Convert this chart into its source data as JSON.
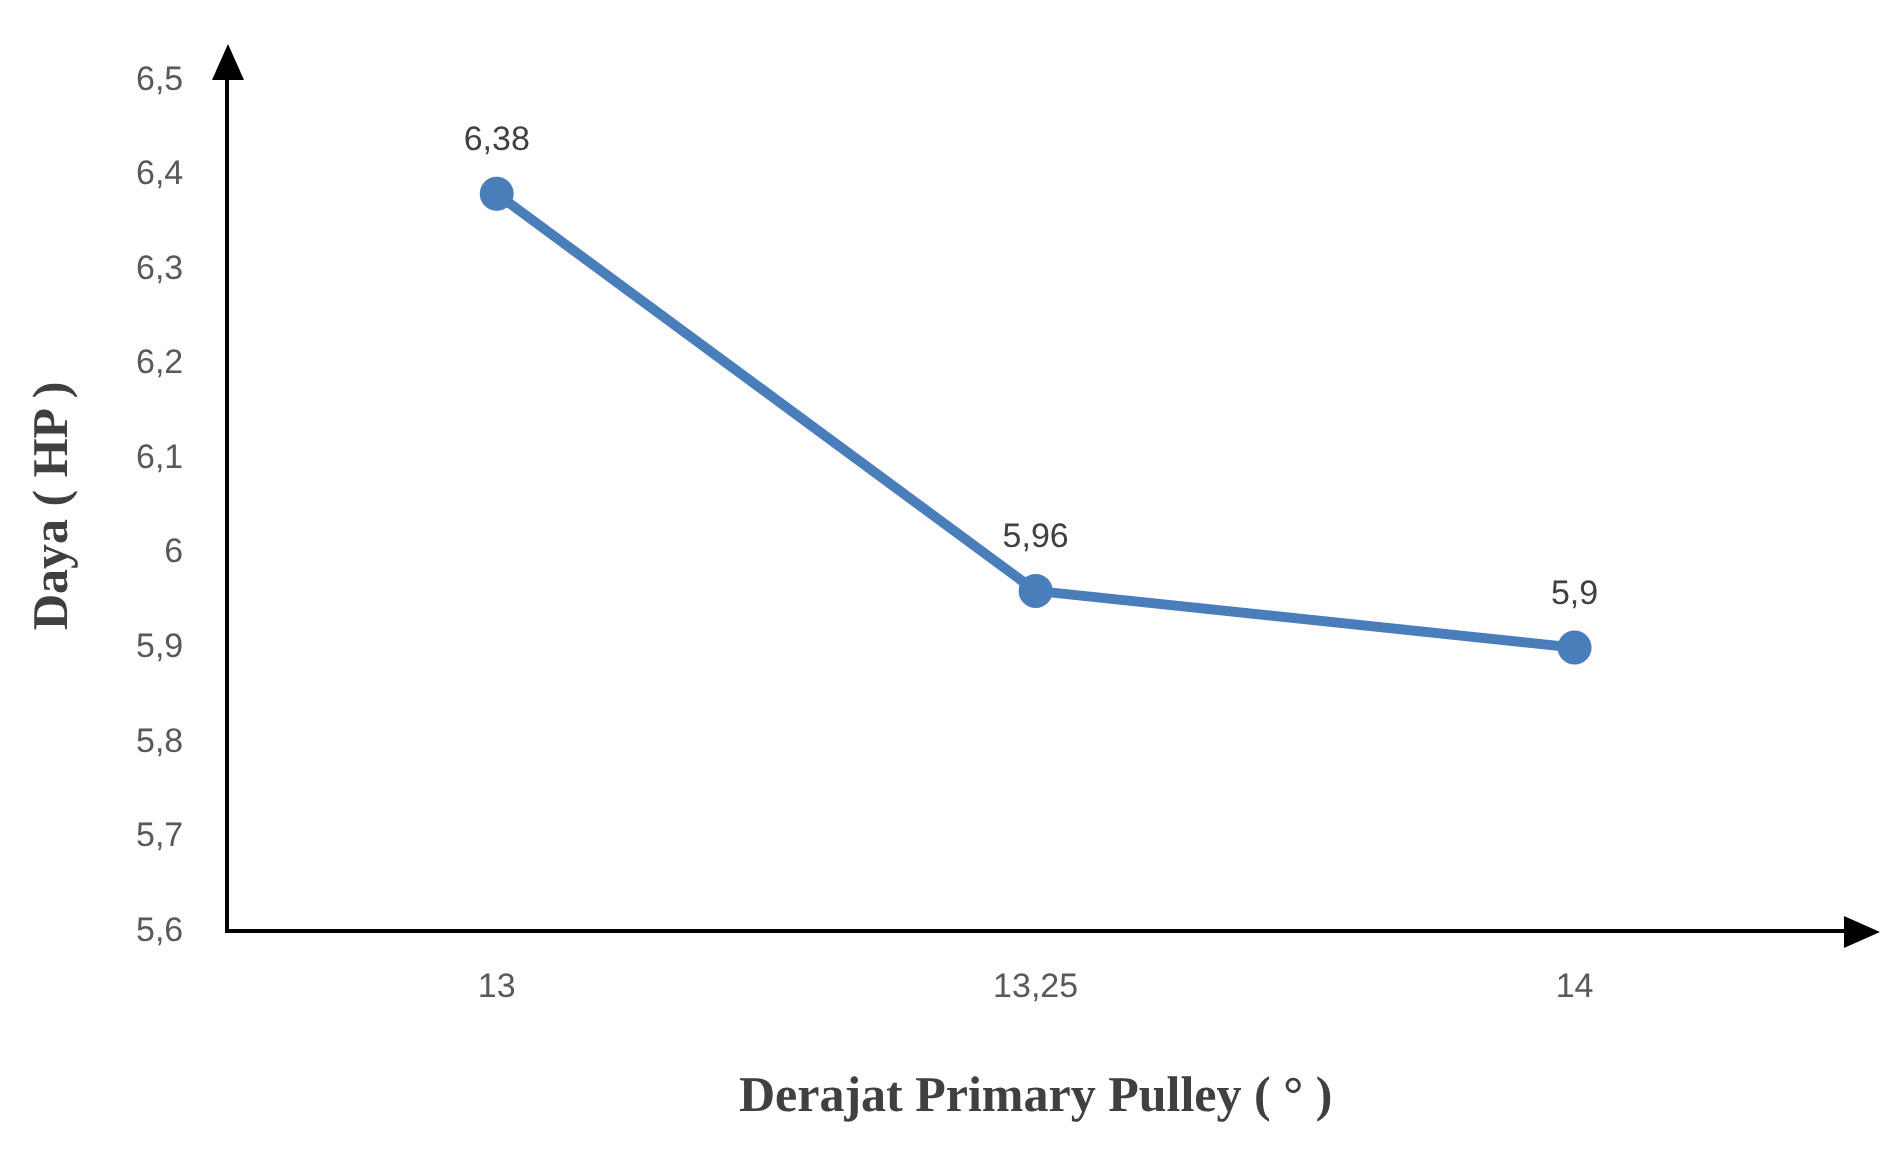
{
  "chart_data": {
    "type": "line",
    "xlabel": "Derajat Primary Pulley ( ° )",
    "ylabel": "Daya ( HP )",
    "categories": [
      "13",
      "13,25",
      "14"
    ],
    "series": [
      {
        "color": "#4a7ebb",
        "values": [
          6.38,
          5.96,
          5.9
        ],
        "value_labels": [
          "6,38",
          "5,96",
          "5,9"
        ]
      }
    ],
    "ylim": [
      5.6,
      6.5
    ],
    "yticks": [
      {
        "value": 5.6,
        "label": "5,6"
      },
      {
        "value": 5.7,
        "label": "5,7"
      },
      {
        "value": 5.8,
        "label": "5,8"
      },
      {
        "value": 5.9,
        "label": "5,9"
      },
      6,
      {
        "value": 6.1,
        "label": "6,1"
      },
      {
        "value": 6.2,
        "label": "6,2"
      },
      {
        "value": 6.3,
        "label": "6,3"
      },
      {
        "value": 6.4,
        "label": "6,4"
      },
      {
        "value": 6.5,
        "label": "6,5"
      }
    ],
    "grid": false,
    "legend": false,
    "marker": "circle",
    "line_style": "solid"
  }
}
